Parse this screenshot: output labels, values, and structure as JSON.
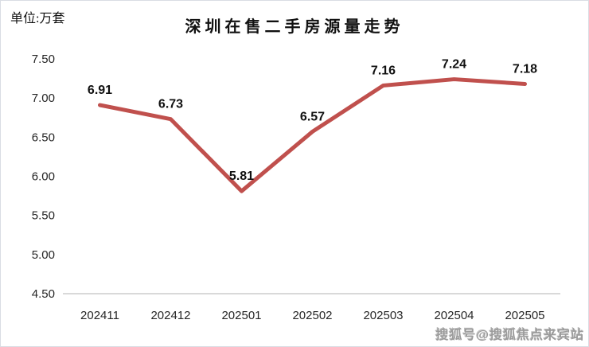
{
  "header": {
    "unit_label": "单位:万套",
    "title": "深圳在售二手房源量走势"
  },
  "watermark": {
    "text": "搜狐号@搜狐焦点来宾站"
  },
  "colors": {
    "line": "#c0504d",
    "axis_line": "#d9d9d9",
    "tick_text": "#262626",
    "label_text": "#111111",
    "frame_border": "#d9dde3"
  },
  "chart_data": {
    "type": "line",
    "title": "深圳在售二手房源量走势",
    "unit": "万套",
    "categories": [
      "202411",
      "202412",
      "202501",
      "202502",
      "202503",
      "202504",
      "202505"
    ],
    "values": [
      6.91,
      6.73,
      5.81,
      6.57,
      7.16,
      7.24,
      7.18
    ],
    "data_labels": [
      "6.91",
      "6.73",
      "5.81",
      "6.57",
      "7.16",
      "7.24",
      "7.18"
    ],
    "yticks": [
      "7.50",
      "7.00",
      "6.50",
      "6.00",
      "5.50",
      "5.00",
      "4.50"
    ],
    "ylim": [
      4.5,
      7.5
    ],
    "xlabel": "",
    "ylabel": "",
    "grid": false,
    "legend": "none",
    "line_color": "#c0504d"
  }
}
